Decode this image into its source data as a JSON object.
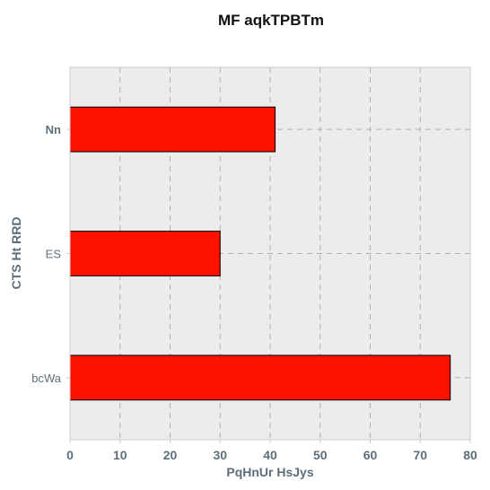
{
  "colors": {
    "plot_background": "#ececec",
    "axis_frame": "#cccccc",
    "grid": "#b0b0b0",
    "bar_fill": "#ff1100",
    "bar_edge": "#000000",
    "axis_text": "#5c6f7a",
    "title_text": "#111111"
  },
  "chart_data": {
    "type": "bar",
    "orientation": "horizontal",
    "title": "MF aqkTPBTm",
    "xlabel": "PqHnUr HsJys",
    "ylabel": "CTS Ht  RRD",
    "categories": [
      "Nn",
      "ES",
      "bcWa"
    ],
    "values": [
      41,
      30,
      76
    ],
    "xlim": [
      0,
      80
    ],
    "xticks": [
      "0",
      "10",
      "20",
      "30",
      "40",
      "50",
      "60",
      "70",
      "80"
    ],
    "grid": true,
    "grid_style": "dashed",
    "legend": "none"
  }
}
